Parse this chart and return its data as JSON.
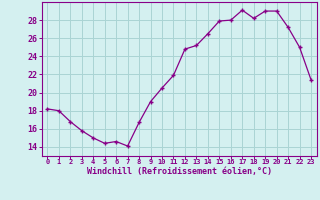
{
  "x": [
    0,
    1,
    2,
    3,
    4,
    5,
    6,
    7,
    8,
    9,
    10,
    11,
    12,
    13,
    14,
    15,
    16,
    17,
    18,
    19,
    20,
    21,
    22,
    23
  ],
  "y": [
    18.2,
    18.0,
    16.8,
    15.8,
    15.0,
    14.4,
    14.6,
    14.1,
    16.7,
    19.0,
    20.5,
    21.9,
    24.8,
    25.2,
    26.5,
    27.9,
    28.0,
    29.1,
    28.2,
    29.0,
    29.0,
    27.2,
    25.0,
    21.4
  ],
  "line_color": "#880088",
  "marker": "+",
  "marker_size": 3.5,
  "background_color": "#d4f0f0",
  "grid_color": "#aad4d4",
  "xlabel": "Windchill (Refroidissement éolien,°C)",
  "tick_color": "#880088",
  "xlim": [
    -0.5,
    23.5
  ],
  "ylim": [
    13.0,
    30.0
  ],
  "yticks": [
    14,
    16,
    18,
    20,
    22,
    24,
    26,
    28
  ],
  "xticks": [
    0,
    1,
    2,
    3,
    4,
    5,
    6,
    7,
    8,
    9,
    10,
    11,
    12,
    13,
    14,
    15,
    16,
    17,
    18,
    19,
    20,
    21,
    22,
    23
  ]
}
